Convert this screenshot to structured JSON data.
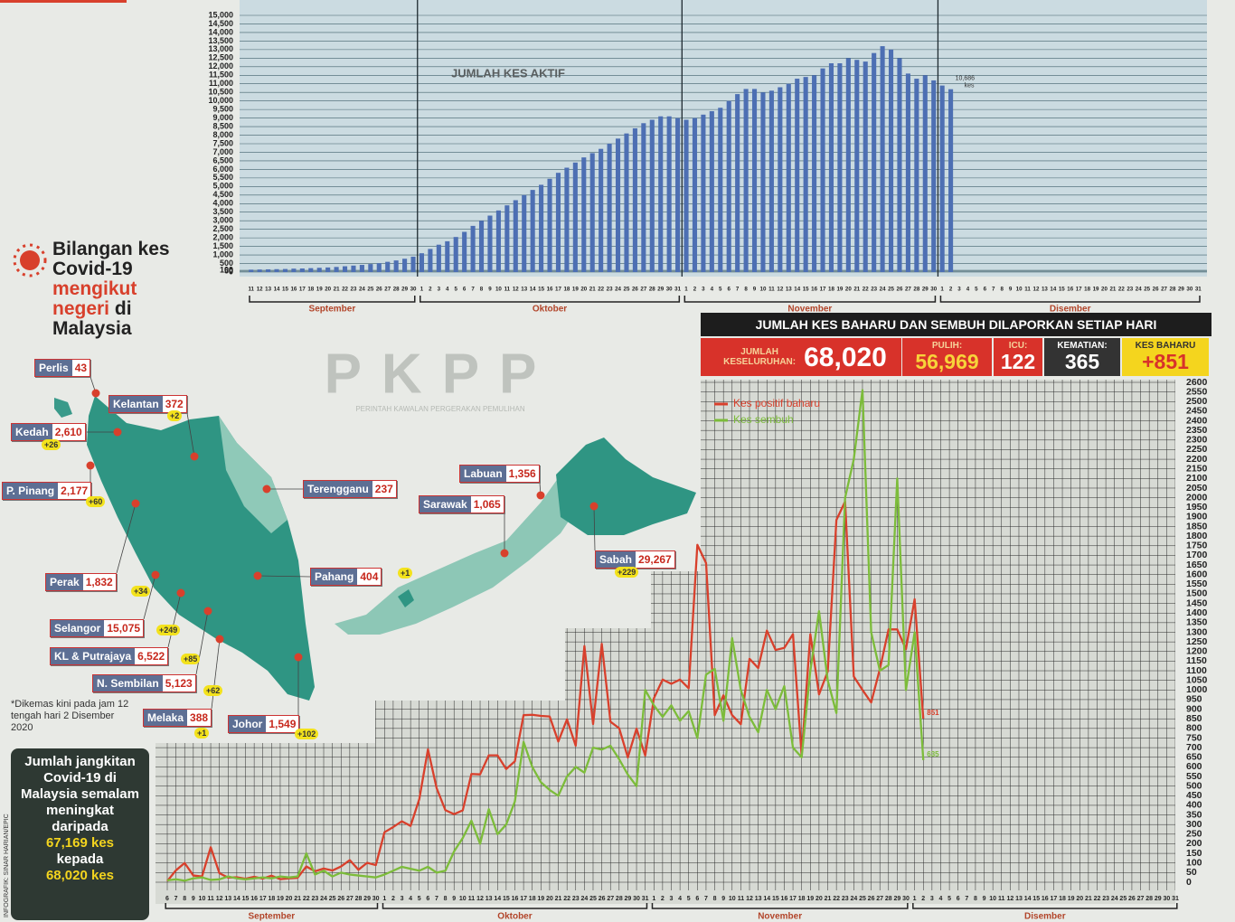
{
  "chart_data": [
    {
      "type": "bar",
      "title": "JUMLAH KES AKTIF",
      "color": "#4d6fb3",
      "grid": true,
      "categories": [
        11,
        12,
        13,
        14,
        15,
        16,
        17,
        18,
        19,
        20,
        21,
        22,
        23,
        24,
        25,
        26,
        27,
        28,
        29,
        30,
        1,
        2,
        3,
        4,
        5,
        6,
        7,
        8,
        9,
        10,
        11,
        12,
        13,
        14,
        15,
        16,
        17,
        18,
        19,
        20,
        21,
        22,
        23,
        24,
        25,
        26,
        27,
        28,
        29,
        30,
        31,
        1,
        2,
        3,
        4,
        5,
        6,
        7,
        8,
        9,
        10,
        11,
        12,
        13,
        14,
        15,
        16,
        17,
        18,
        19,
        20,
        21,
        22,
        23,
        24,
        25,
        26,
        27,
        28,
        29,
        30,
        1,
        2,
        3,
        4,
        5,
        6,
        7,
        8,
        9,
        10,
        11,
        12,
        13,
        14,
        15,
        16,
        17,
        18,
        19,
        20,
        21,
        22,
        23,
        24,
        25,
        26,
        27,
        28,
        29,
        30,
        31
      ],
      "months": [
        "September",
        "Oktober",
        "November",
        "Disember"
      ],
      "values": [
        140,
        150,
        160,
        170,
        180,
        200,
        210,
        230,
        250,
        270,
        300,
        340,
        380,
        420,
        470,
        520,
        600,
        680,
        780,
        900,
        1100,
        1350,
        1600,
        1800,
        2050,
        2350,
        2700,
        3000,
        3300,
        3600,
        3900,
        4200,
        4500,
        4800,
        5100,
        5450,
        5800,
        6100,
        6400,
        6700,
        6950,
        7200,
        7500,
        7800,
        8100,
        8400,
        8700,
        8900,
        9100,
        9100,
        9000,
        8900,
        9000,
        9200,
        9400,
        9600,
        10000,
        10400,
        10700,
        10700,
        10500,
        10600,
        10800,
        11000,
        11300,
        11400,
        11500,
        11900,
        12200,
        12200,
        12500,
        12400,
        12300,
        12800,
        13200,
        13000,
        12500,
        11600,
        11300,
        11500,
        11200,
        10900,
        10686,
        null,
        null,
        null,
        null,
        null,
        null,
        null,
        null,
        null,
        null,
        null,
        null,
        null,
        null,
        null,
        null,
        null,
        null,
        null,
        null,
        null,
        null,
        null,
        null,
        null,
        null,
        null,
        null,
        null
      ],
      "annotation": [
        "10,686",
        "kes"
      ],
      "ylim": [
        0,
        15000
      ],
      "yticks": [
        0,
        50,
        100,
        500,
        {
          "value": 1000,
          "label": "1,000"
        },
        {
          "value": 1500,
          "label": "1,500"
        },
        {
          "value": 2000,
          "label": "2,000"
        },
        {
          "value": 2500,
          "label": "2,500"
        },
        {
          "value": 3000,
          "label": "3,000"
        },
        {
          "value": 3500,
          "label": "3,500"
        },
        {
          "value": 4000,
          "label": "4,000"
        },
        {
          "value": 4500,
          "label": "4,500"
        },
        {
          "value": 5000,
          "label": "5,000"
        },
        {
          "value": 5500,
          "label": "5,500"
        },
        {
          "value": 6000,
          "label": "6,000"
        },
        {
          "value": 6500,
          "label": "6,500"
        },
        {
          "value": 7000,
          "label": "7,000"
        },
        {
          "value": 7500,
          "label": "7,500"
        },
        {
          "value": 8000,
          "label": "8,000"
        },
        {
          "value": 8500,
          "label": "8,500"
        },
        {
          "value": 9000,
          "label": "9,000"
        },
        {
          "value": 9500,
          "label": "9,500"
        },
        {
          "value": 10000,
          "label": "10,000"
        },
        {
          "value": 10500,
          "label": "10,500"
        },
        {
          "value": 11000,
          "label": "11,000"
        },
        {
          "value": 11500,
          "label": "11,500"
        },
        {
          "value": 12000,
          "label": "12,000"
        },
        {
          "value": 12500,
          "label": "12,500"
        },
        {
          "value": 13000,
          "label": "13,000"
        },
        {
          "value": 13500,
          "label": "13,500"
        },
        {
          "value": 14000,
          "label": "14,000"
        },
        {
          "value": 14500,
          "label": "14,500"
        },
        {
          "value": 15000,
          "label": "15,000"
        }
      ]
    },
    {
      "type": "line",
      "title": "JUMLAH KES BAHARU DAN SEMBUH DILAPORKAN SETIAP HARI",
      "grid": true,
      "categories": [
        6,
        7,
        8,
        9,
        10,
        11,
        12,
        13,
        14,
        15,
        16,
        17,
        18,
        19,
        20,
        21,
        22,
        23,
        24,
        25,
        26,
        27,
        28,
        29,
        30,
        1,
        2,
        3,
        4,
        5,
        6,
        7,
        8,
        9,
        10,
        11,
        12,
        13,
        14,
        15,
        16,
        17,
        18,
        19,
        20,
        21,
        22,
        23,
        24,
        25,
        26,
        27,
        28,
        29,
        30,
        31,
        1,
        2,
        3,
        4,
        5,
        6,
        7,
        8,
        9,
        10,
        11,
        12,
        13,
        14,
        15,
        16,
        17,
        18,
        19,
        20,
        21,
        22,
        23,
        24,
        25,
        26,
        27,
        28,
        29,
        30,
        1,
        2,
        3,
        4,
        5,
        6,
        7,
        8,
        9,
        10,
        11,
        12,
        13,
        14,
        15,
        16,
        17,
        18,
        19,
        20,
        21,
        22,
        23,
        24,
        25,
        26,
        27,
        28,
        29,
        30,
        31
      ],
      "months": [
        "September",
        "Oktober",
        "November",
        "Disember"
      ],
      "series": [
        {
          "name": "Kes positif baharu",
          "color": "#d8402c",
          "values": [
            6,
            62,
            100,
            35,
            30,
            182,
            47,
            24,
            26,
            18,
            28,
            19,
            34,
            16,
            20,
            23,
            82,
            57,
            71,
            61,
            82,
            115,
            65,
            101,
            89,
            260,
            287,
            317,
            293,
            432,
            691,
            489,
            375,
            354,
            374,
            563,
            561,
            660,
            660,
            589,
            629,
            869,
            871,
            865,
            862,
            732,
            847,
            710,
            1228,
            823,
            1240,
            835,
            801,
            649,
            799,
            659,
            957,
            1054,
            1032,
            1054,
            1009,
            1755,
            1660,
            869,
            972,
            869,
            822,
            1162,
            1114,
            1309,
            1208,
            1219,
            1290,
            660,
            1290,
            977,
            1096,
            1884,
            1980,
            1070,
            1000,
            935,
            1109,
            1315,
            1315,
            1212,
            1472,
            851,
            null,
            null,
            null,
            null,
            null,
            null,
            null,
            null,
            null,
            null,
            null,
            null,
            null,
            null,
            null,
            null,
            null,
            null,
            null,
            null,
            null,
            null,
            null,
            null,
            null,
            null,
            null,
            null,
            null
          ]
        },
        {
          "name": "Kes sembuh",
          "color": "#7cbc3a",
          "values": [
            10,
            15,
            8,
            20,
            25,
            12,
            15,
            30,
            20,
            15,
            20,
            25,
            20,
            30,
            25,
            30,
            150,
            40,
            60,
            30,
            50,
            40,
            35,
            30,
            25,
            40,
            60,
            80,
            70,
            60,
            80,
            50,
            60,
            160,
            230,
            320,
            200,
            380,
            250,
            300,
            420,
            730,
            600,
            520,
            480,
            450,
            550,
            600,
            570,
            700,
            690,
            710,
            640,
            560,
            500,
            1000,
            920,
            860,
            920,
            840,
            890,
            750,
            1080,
            1110,
            840,
            1270,
            1000,
            860,
            780,
            1000,
            900,
            1020,
            700,
            650,
            1100,
            1410,
            1050,
            880,
            2000,
            2200,
            2560,
            1300,
            1100,
            1130,
            2100,
            1000,
            1300,
            635,
            null,
            null,
            null,
            null,
            null,
            null,
            null,
            null,
            null,
            null,
            null,
            null,
            null,
            null,
            null,
            null,
            null,
            null,
            null,
            null,
            null,
            null,
            null,
            null,
            null,
            null,
            null,
            null,
            null
          ]
        }
      ],
      "ylim": [
        0,
        2600
      ],
      "yticks": [
        0,
        50,
        100,
        150,
        200,
        250,
        300,
        350,
        400,
        450,
        500,
        550,
        600,
        650,
        700,
        750,
        800,
        850,
        900,
        950,
        1000,
        1050,
        1100,
        1150,
        1200,
        1250,
        1300,
        1350,
        1400,
        1450,
        1500,
        1550,
        1600,
        1650,
        1700,
        1750,
        1800,
        1850,
        1900,
        1950,
        2000,
        2050,
        2100,
        2150,
        2200,
        2250,
        2300,
        2350,
        2400,
        2450,
        2500,
        2550,
        2600
      ]
    }
  ],
  "summary": {
    "total_label": "JUMLAH KESELURUHAN:",
    "total": "68,020",
    "recovered_label": "PULIH:",
    "recovered": "56,969",
    "icu_label": "ICU:",
    "icu": "122",
    "deaths_label": "KEMATIAN:",
    "deaths": "365",
    "new_label": "KES BAHARU",
    "new": "+851"
  },
  "map": {
    "title": [
      "Bilangan kes Covid-19",
      "mengikut negeri",
      "di Malaysia"
    ],
    "states": [
      {
        "name": "Perlis",
        "cases": "43"
      },
      {
        "name": "Kelantan",
        "cases": "372",
        "change": "+2"
      },
      {
        "name": "Kedah",
        "cases": "2,610",
        "change": "+26"
      },
      {
        "name": "P. Pinang",
        "cases": "2,177",
        "change": "+60"
      },
      {
        "name": "Terengganu",
        "cases": "237"
      },
      {
        "name": "Labuan",
        "cases": "1,356"
      },
      {
        "name": "Sarawak",
        "cases": "1,065"
      },
      {
        "name": "Sabah",
        "cases": "29,267",
        "change": "+229"
      },
      {
        "name": "Perak",
        "cases": "1,832",
        "change": "+34"
      },
      {
        "name": "Pahang",
        "cases": "404",
        "change": "+1"
      },
      {
        "name": "Selangor",
        "cases": "15,075",
        "change": "+249"
      },
      {
        "name": "KL & Putrajaya",
        "cases": "6,522",
        "change": "+85"
      },
      {
        "name": "N. Sembilan",
        "cases": "5,123",
        "change": "+62"
      },
      {
        "name": "Melaka",
        "cases": "388",
        "change": "+1"
      },
      {
        "name": "Johor",
        "cases": "1,549",
        "change": "+102"
      }
    ]
  },
  "pkpp": {
    "title": "PKPP",
    "subtitle": "PERINTAH KAWALAN PERGERAKAN PEMULIHAN"
  },
  "note": "*Dikemas kini pada jam 12 tengah hari 2 Disember 2020",
  "box": {
    "text": "Jumlah jangkitan Covid-19 di Malaysia semalam meningkat daripada",
    "from": "67,169 kes",
    "middle": "kepada",
    "to": "68,020 kes"
  },
  "credit": "INFOGRAFIK: SINAR HARIAN/EPIC"
}
